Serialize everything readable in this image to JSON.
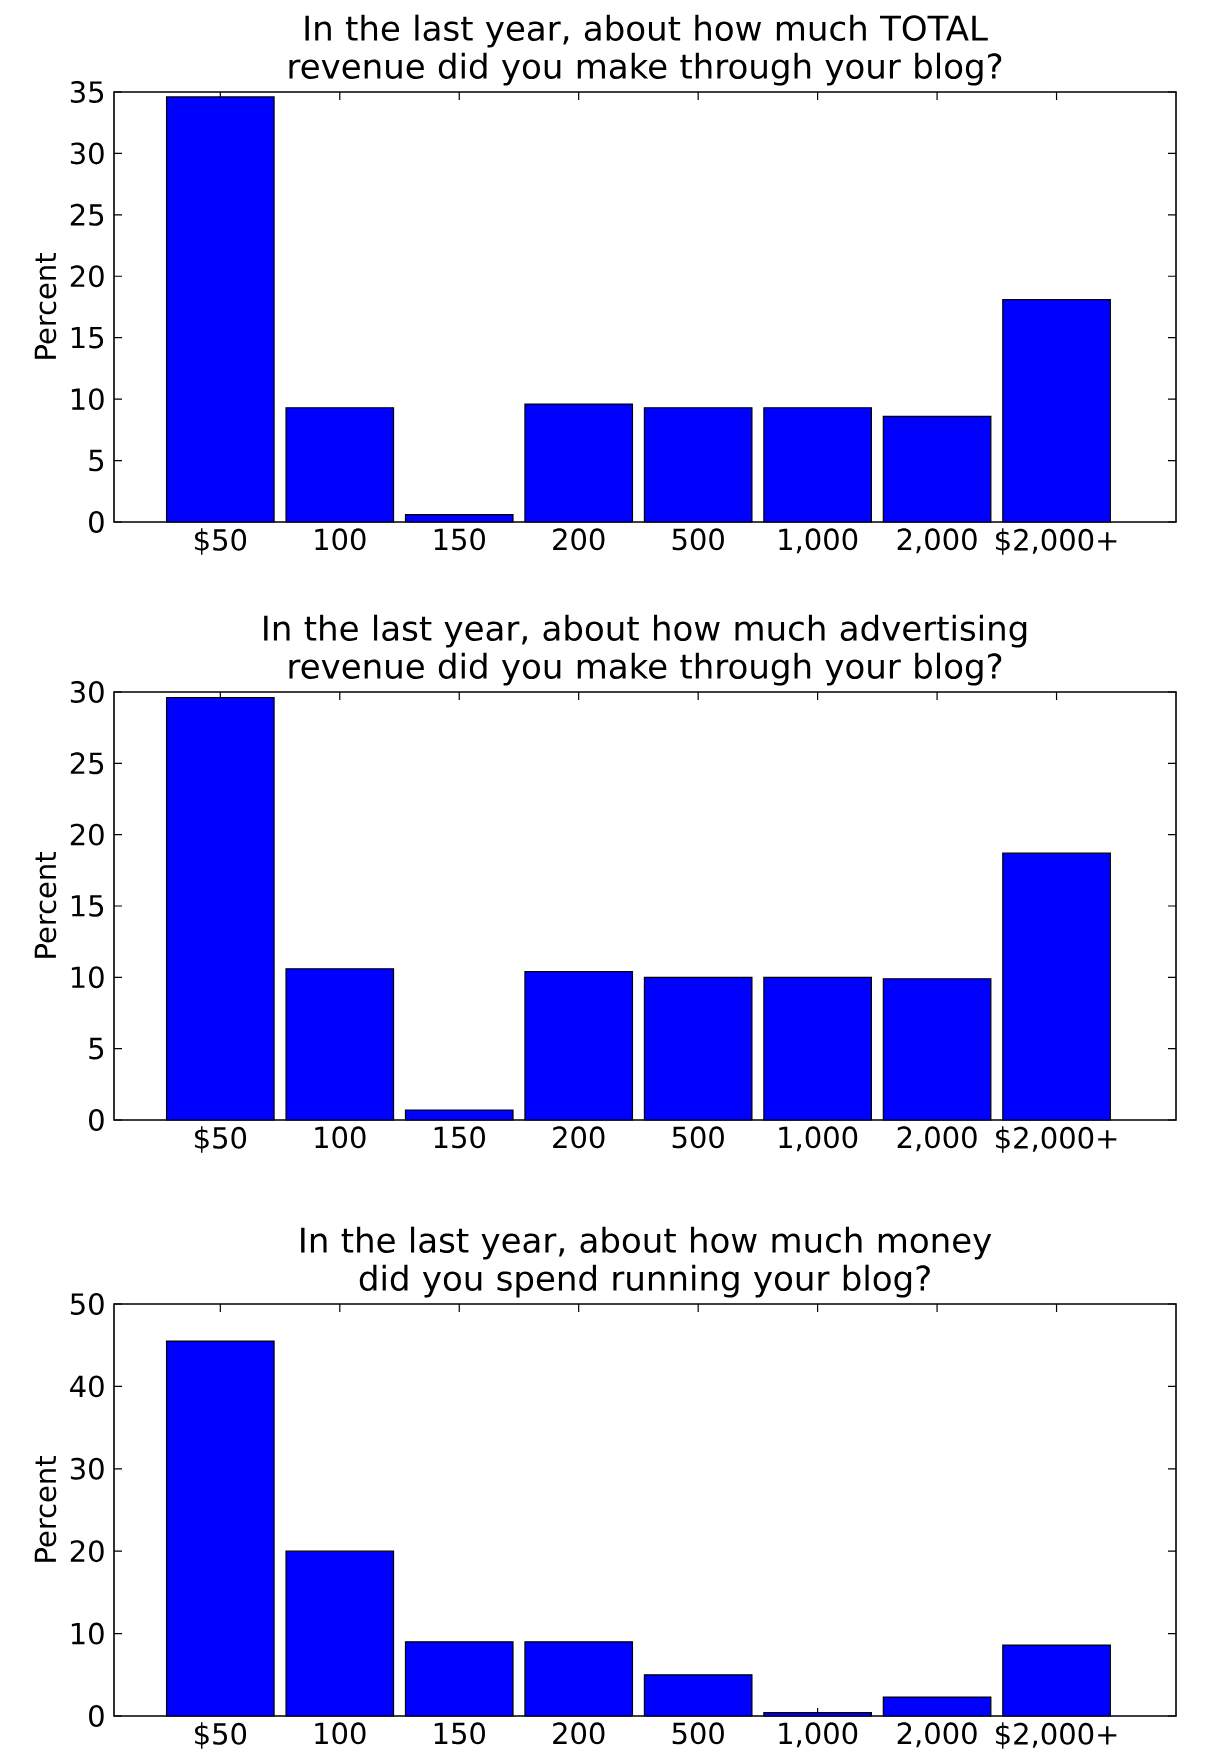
{
  "chart_data": [
    {
      "type": "bar",
      "title": "In the last year, about how much TOTAL revenue did you make through your blog?",
      "ylabel": "Percent",
      "categories": [
        "$50",
        "100",
        "150",
        "200",
        "500",
        "1,000",
        "2,000",
        "$2,000+"
      ],
      "values": [
        34.6,
        9.3,
        0.6,
        9.6,
        9.3,
        9.3,
        8.6,
        18.1
      ],
      "color": "#0000ff",
      "ylim": [
        0,
        35
      ],
      "yticks": [
        0,
        5,
        10,
        15,
        20,
        25,
        30,
        35
      ]
    },
    {
      "type": "bar",
      "title": "In the last year, about how much advertising revenue did you make through your blog?",
      "ylabel": "Percent",
      "categories": [
        "$50",
        "100",
        "150",
        "200",
        "500",
        "1,000",
        "2,000",
        "$2,000+"
      ],
      "values": [
        29.6,
        10.6,
        0.7,
        10.4,
        10.0,
        10.0,
        9.9,
        18.7
      ],
      "color": "#0000ff",
      "ylim": [
        0,
        30
      ],
      "yticks": [
        0,
        5,
        10,
        15,
        20,
        25,
        30
      ]
    },
    {
      "type": "bar",
      "title": "In the last year, about how much money did you spend running your blog?",
      "ylabel": "Percent",
      "categories": [
        "$50",
        "100",
        "150",
        "200",
        "500",
        "1,000",
        "2,000",
        "$2,000+"
      ],
      "values": [
        45.5,
        20.0,
        9.0,
        9.0,
        5.0,
        0.4,
        2.3,
        8.6
      ],
      "color": "#0000ff",
      "ylim": [
        0,
        50
      ],
      "yticks": [
        0,
        10,
        20,
        30,
        40,
        50
      ]
    }
  ]
}
